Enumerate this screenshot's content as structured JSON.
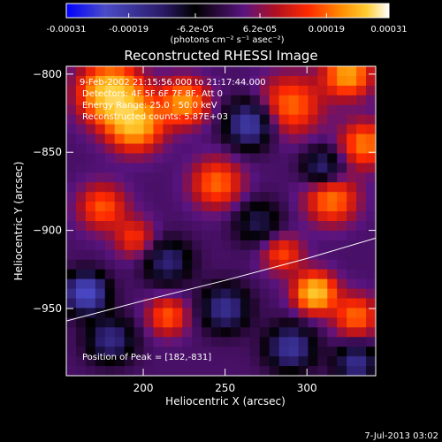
{
  "chart_data": {
    "type": "heatmap",
    "title": "Reconstructed RHESSI Image",
    "xlabel": "Heliocentric X (arcsec)",
    "ylabel": "Heliocentric Y (arcsec)",
    "xlim": [
      153,
      342
    ],
    "ylim": [
      -993,
      -795
    ],
    "x_ticks": [
      200,
      250,
      300
    ],
    "y_ticks": [
      -800,
      -850,
      -900,
      -950
    ],
    "colorbar": {
      "tick_labels": [
        "-0.00031",
        "-0.00019",
        "-6.2e-05",
        "6.2e-05",
        "0.00019",
        "0.00031"
      ],
      "tick_values": [
        -0.00031,
        -0.00019,
        -6.2e-05,
        6.2e-05,
        0.00019,
        0.00031
      ],
      "units_label": "(photons cm⁻² s⁻¹ asec⁻²)",
      "colors": [
        "#0000ff",
        "#4b4bc9",
        "#2a1a66",
        "#000000",
        "#5a1480",
        "#b01020",
        "#ff2a00",
        "#ff8a00",
        "#ffcc30",
        "#ffffff"
      ]
    },
    "annotations": [
      "9-Feb-2002 21:15:56.000 to 21:17:44.000",
      "Detectors: 4F 5F 6F 7F 8F, Att 0",
      "Energy Range: 25.0 - 50.0 keV",
      "Reconstructed counts: 5.87E+03"
    ],
    "peak_label": "Position of Peak = [182,-831]",
    "peak": [
      182,
      -831
    ],
    "limb_curve": {
      "x": [
        153,
        200,
        250,
        300,
        342
      ],
      "y": [
        -958,
        -945,
        -932,
        -918,
        -905
      ]
    },
    "blobs": [
      {
        "x": 180,
        "y": -812,
        "v": 1.0,
        "r": 18
      },
      {
        "x": 195,
        "y": -832,
        "v": 0.85,
        "r": 16
      },
      {
        "x": 225,
        "y": -818,
        "v": 0.7,
        "r": 14
      },
      {
        "x": 290,
        "y": -820,
        "v": 0.55,
        "r": 18
      },
      {
        "x": 325,
        "y": -800,
        "v": 0.75,
        "r": 14
      },
      {
        "x": 245,
        "y": -870,
        "v": 0.55,
        "r": 15
      },
      {
        "x": 335,
        "y": -845,
        "v": 0.6,
        "r": 14
      },
      {
        "x": 315,
        "y": -880,
        "v": 0.6,
        "r": 15
      },
      {
        "x": 175,
        "y": -885,
        "v": 0.5,
        "r": 14
      },
      {
        "x": 305,
        "y": -940,
        "v": 0.95,
        "r": 12
      },
      {
        "x": 330,
        "y": -955,
        "v": 0.55,
        "r": 13
      },
      {
        "x": 215,
        "y": -955,
        "v": 0.5,
        "r": 12
      },
      {
        "x": 285,
        "y": -915,
        "v": 0.45,
        "r": 12
      },
      {
        "x": 195,
        "y": -905,
        "v": 0.4,
        "r": 12
      },
      {
        "x": 165,
        "y": -940,
        "v": -0.9,
        "r": 12
      },
      {
        "x": 265,
        "y": -832,
        "v": -0.7,
        "r": 14
      },
      {
        "x": 310,
        "y": -860,
        "v": -0.5,
        "r": 12
      },
      {
        "x": 250,
        "y": -950,
        "v": -0.55,
        "r": 14
      },
      {
        "x": 290,
        "y": -975,
        "v": -0.6,
        "r": 14
      },
      {
        "x": 330,
        "y": -985,
        "v": -0.55,
        "r": 12
      },
      {
        "x": 180,
        "y": -970,
        "v": -0.5,
        "r": 14
      },
      {
        "x": 215,
        "y": -920,
        "v": -0.45,
        "r": 14
      },
      {
        "x": 270,
        "y": -895,
        "v": -0.35,
        "r": 14
      }
    ]
  },
  "footer": {
    "date": "7-Jul-2013 03:02"
  }
}
